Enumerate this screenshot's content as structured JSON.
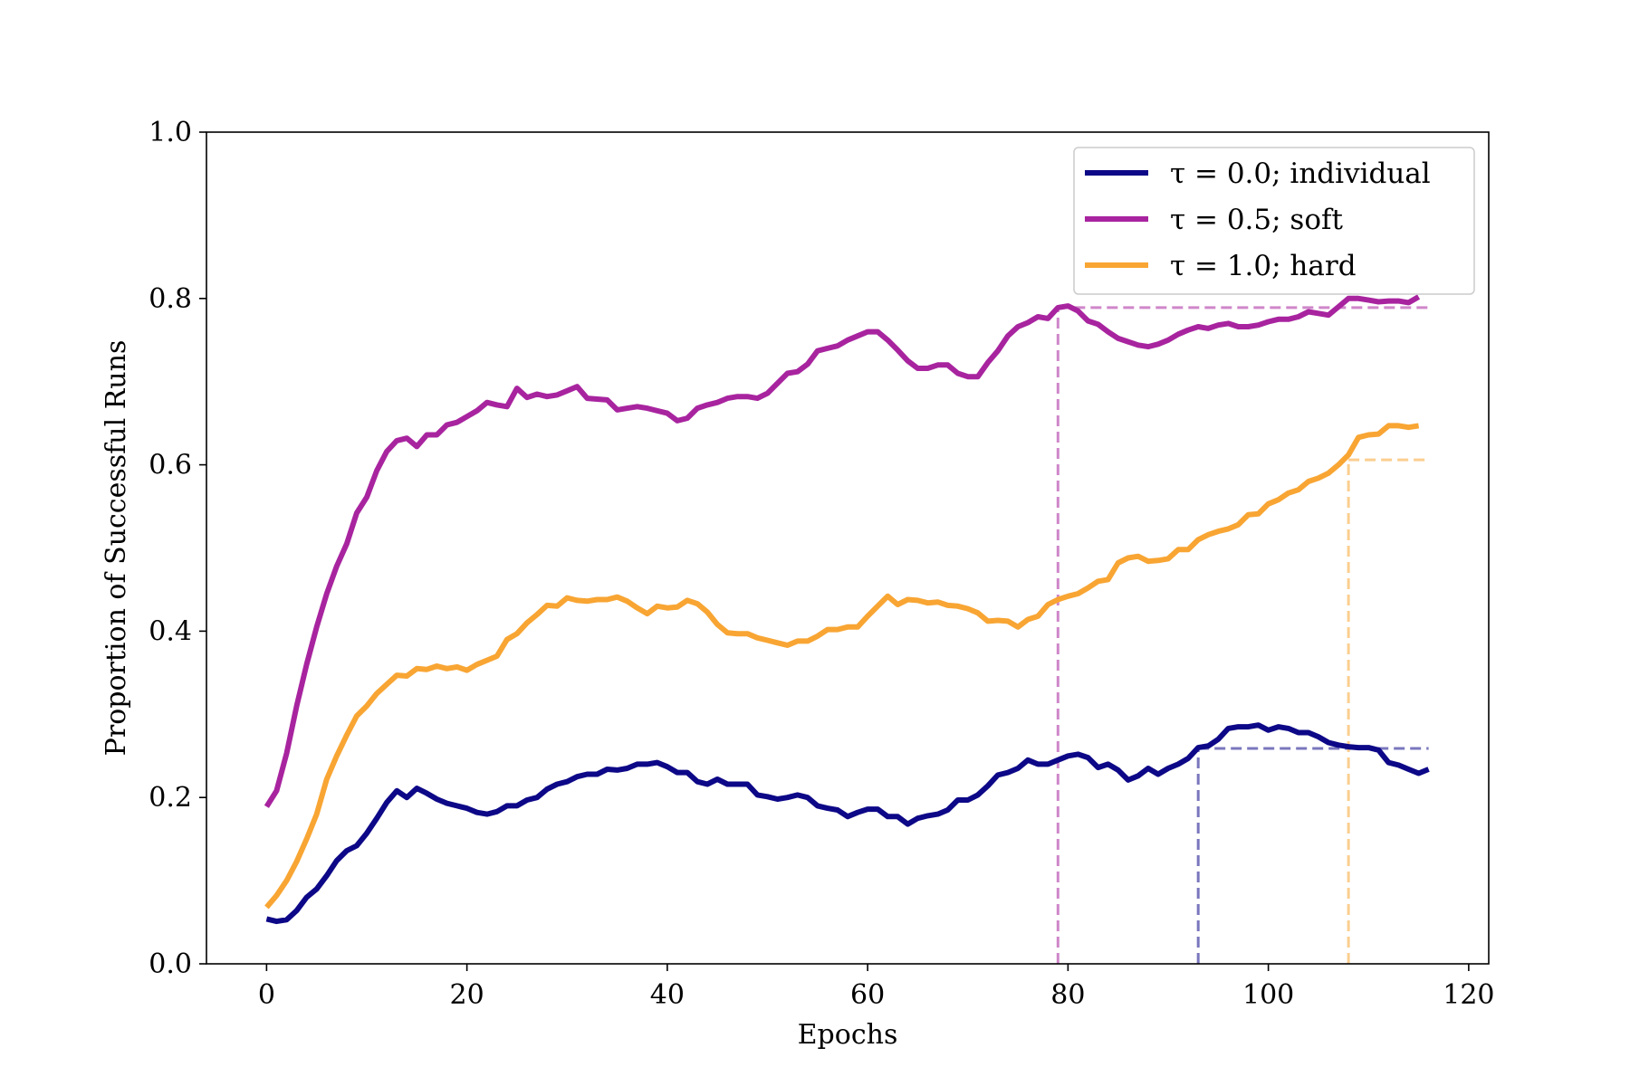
{
  "chart_data": {
    "type": "line",
    "xlabel": "Epochs",
    "ylabel": "Proportion of Successful Runs",
    "xlim": [
      -6,
      122
    ],
    "ylim": [
      0.0,
      1.0
    ],
    "xticks": [
      0,
      20,
      40,
      60,
      80,
      100,
      120
    ],
    "yticks": [
      0.0,
      0.2,
      0.4,
      0.6,
      0.8,
      1.0
    ],
    "xtick_labels": [
      "0",
      "20",
      "40",
      "60",
      "80",
      "100",
      "120"
    ],
    "ytick_labels": [
      "0.0",
      "0.2",
      "0.4",
      "0.6",
      "0.8",
      "1.0"
    ],
    "grid": false,
    "legend_position": "top-right",
    "series": [
      {
        "name": "τ =  0.0; individual",
        "color": "#0d0887",
        "x_start": 0,
        "values": [
          0.054,
          0.051,
          0.053,
          0.064,
          0.08,
          0.09,
          0.106,
          0.124,
          0.136,
          0.142,
          0.157,
          0.175,
          0.194,
          0.208,
          0.2,
          0.211,
          0.205,
          0.198,
          0.193,
          0.19,
          0.187,
          0.182,
          0.18,
          0.183,
          0.19,
          0.19,
          0.197,
          0.2,
          0.21,
          0.216,
          0.219,
          0.225,
          0.228,
          0.228,
          0.234,
          0.233,
          0.235,
          0.24,
          0.24,
          0.242,
          0.237,
          0.23,
          0.23,
          0.219,
          0.216,
          0.222,
          0.216,
          0.216,
          0.216,
          0.203,
          0.201,
          0.198,
          0.2,
          0.203,
          0.2,
          0.19,
          0.187,
          0.185,
          0.177,
          0.182,
          0.186,
          0.186,
          0.177,
          0.177,
          0.168,
          0.175,
          0.178,
          0.18,
          0.185,
          0.197,
          0.197,
          0.203,
          0.214,
          0.227,
          0.23,
          0.235,
          0.245,
          0.24,
          0.24,
          0.245,
          0.25,
          0.252,
          0.248,
          0.236,
          0.24,
          0.233,
          0.221,
          0.226,
          0.235,
          0.228,
          0.235,
          0.24,
          0.247,
          0.26,
          0.262,
          0.27,
          0.283,
          0.285,
          0.285,
          0.287,
          0.281,
          0.285,
          0.283,
          0.278,
          0.278,
          0.273,
          0.266,
          0.263,
          0.261,
          0.26,
          0.26,
          0.257,
          0.242,
          0.239,
          0.234,
          0.229,
          0.234
        ]
      },
      {
        "name": "τ =  0.5; soft",
        "color": "#a8249f",
        "x_start": 0,
        "values": [
          0.189,
          0.208,
          0.253,
          0.31,
          0.36,
          0.405,
          0.445,
          0.478,
          0.505,
          0.542,
          0.561,
          0.593,
          0.616,
          0.629,
          0.632,
          0.622,
          0.636,
          0.636,
          0.648,
          0.651,
          0.658,
          0.665,
          0.675,
          0.672,
          0.67,
          0.692,
          0.681,
          0.685,
          0.682,
          0.684,
          0.689,
          0.694,
          0.68,
          0.679,
          0.678,
          0.666,
          0.668,
          0.67,
          0.668,
          0.665,
          0.662,
          0.653,
          0.656,
          0.668,
          0.672,
          0.675,
          0.68,
          0.682,
          0.682,
          0.68,
          0.686,
          0.698,
          0.71,
          0.712,
          0.721,
          0.737,
          0.74,
          0.743,
          0.75,
          0.755,
          0.76,
          0.76,
          0.75,
          0.738,
          0.725,
          0.716,
          0.716,
          0.72,
          0.72,
          0.71,
          0.706,
          0.706,
          0.723,
          0.737,
          0.755,
          0.766,
          0.771,
          0.778,
          0.776,
          0.789,
          0.791,
          0.785,
          0.773,
          0.769,
          0.76,
          0.752,
          0.748,
          0.744,
          0.742,
          0.745,
          0.75,
          0.757,
          0.762,
          0.766,
          0.764,
          0.768,
          0.77,
          0.766,
          0.766,
          0.768,
          0.772,
          0.775,
          0.775,
          0.778,
          0.784,
          0.782,
          0.78,
          0.79,
          0.8,
          0.8,
          0.798,
          0.796,
          0.797,
          0.797,
          0.795,
          0.802
        ]
      },
      {
        "name": "τ =  1.0; hard",
        "color": "#f8a533",
        "x_start": 0,
        "values": [
          0.068,
          0.082,
          0.1,
          0.123,
          0.15,
          0.18,
          0.222,
          0.25,
          0.275,
          0.298,
          0.31,
          0.325,
          0.336,
          0.347,
          0.346,
          0.355,
          0.354,
          0.358,
          0.355,
          0.357,
          0.353,
          0.36,
          0.365,
          0.37,
          0.39,
          0.397,
          0.41,
          0.42,
          0.431,
          0.43,
          0.44,
          0.437,
          0.436,
          0.438,
          0.438,
          0.441,
          0.436,
          0.428,
          0.421,
          0.43,
          0.428,
          0.429,
          0.437,
          0.433,
          0.423,
          0.408,
          0.398,
          0.397,
          0.397,
          0.392,
          0.389,
          0.386,
          0.383,
          0.388,
          0.388,
          0.394,
          0.402,
          0.402,
          0.405,
          0.405,
          0.418,
          0.43,
          0.442,
          0.432,
          0.438,
          0.437,
          0.434,
          0.435,
          0.431,
          0.43,
          0.427,
          0.422,
          0.412,
          0.413,
          0.412,
          0.405,
          0.414,
          0.418,
          0.432,
          0.438,
          0.442,
          0.445,
          0.452,
          0.46,
          0.462,
          0.482,
          0.488,
          0.49,
          0.484,
          0.485,
          0.487,
          0.498,
          0.498,
          0.51,
          0.516,
          0.52,
          0.523,
          0.528,
          0.54,
          0.541,
          0.553,
          0.558,
          0.566,
          0.57,
          0.58,
          0.584,
          0.59,
          0.6,
          0.612,
          0.633,
          0.636,
          0.637,
          0.647,
          0.647,
          0.645,
          0.647
        ]
      }
    ],
    "reference_lines": [
      {
        "series": "τ =  0.5; soft",
        "x": 79,
        "y": 0.789,
        "x_end": 116
      },
      {
        "series": "τ =  0.0; individual",
        "x": 93,
        "y": 0.259,
        "x_end": 116
      },
      {
        "series": "τ =  1.0; hard",
        "x": 108,
        "y": 0.606,
        "x_end": 116
      }
    ]
  }
}
